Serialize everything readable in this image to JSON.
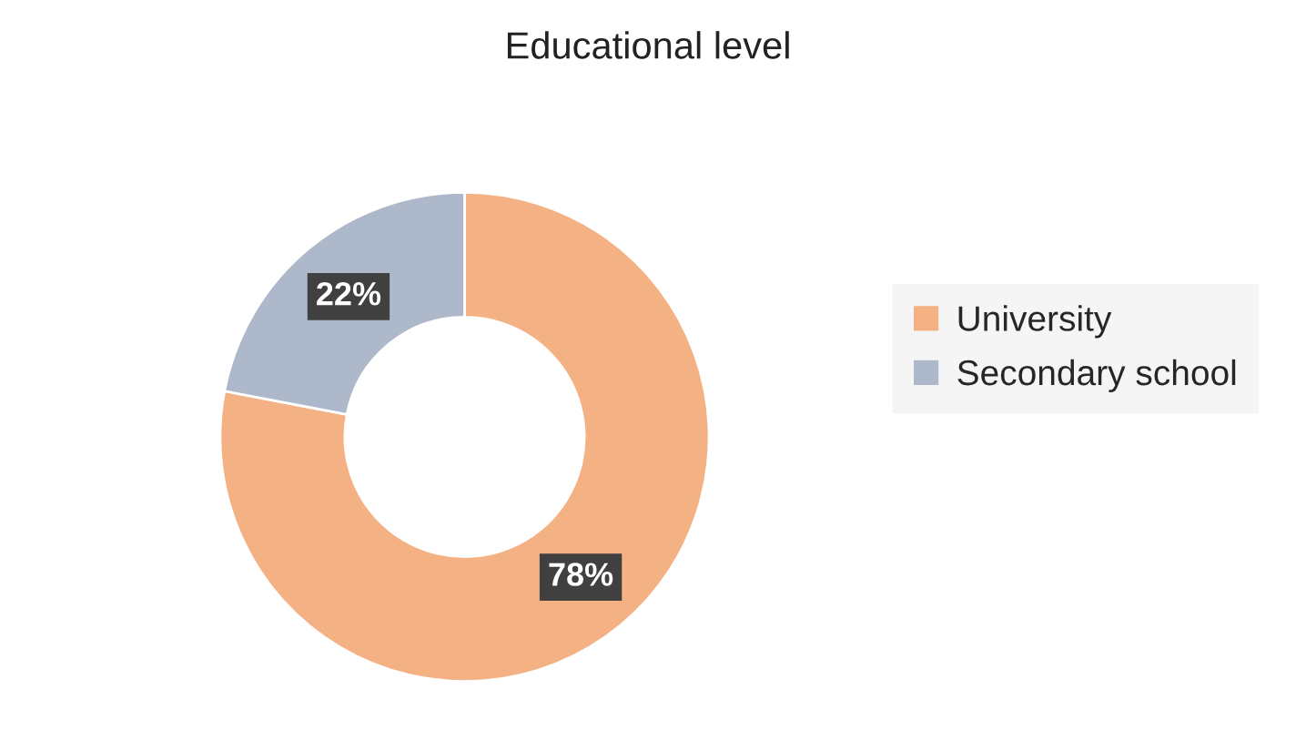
{
  "chart_data": {
    "type": "donut",
    "title": "Educational level",
    "categories": [
      "University",
      "Secondary school"
    ],
    "values": [
      78,
      22
    ],
    "colors": [
      "#f4b183",
      "#adb9ca"
    ],
    "value_labels": [
      "78%",
      "22%"
    ],
    "legend": "right"
  }
}
